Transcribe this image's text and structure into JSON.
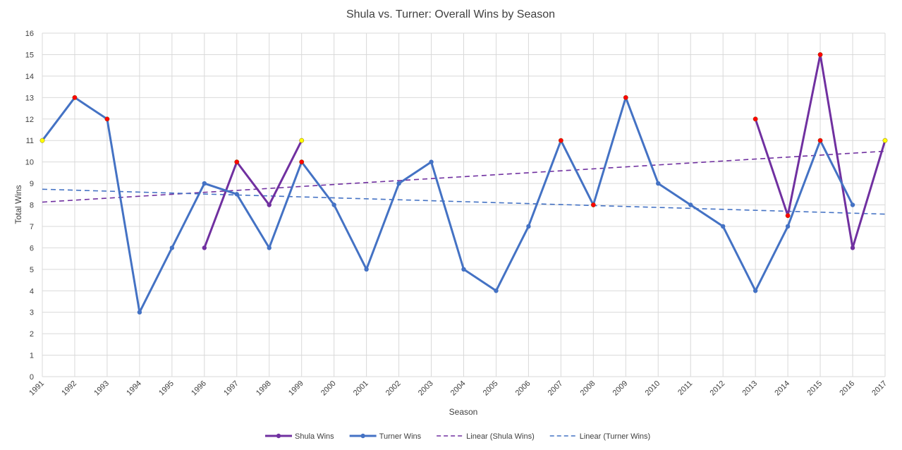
{
  "chart_data": {
    "type": "line",
    "title": "Shula vs. Turner: Overall Wins by Season",
    "xlabel": "Season",
    "ylabel": "Total Wins",
    "ylim": [
      0,
      16
    ],
    "ytick_step": 1,
    "grid": true,
    "legend_position": "bottom",
    "categories": [
      "1991",
      "1992",
      "1993",
      "1994",
      "1995",
      "1996",
      "1997",
      "1998",
      "1999",
      "2000",
      "2001",
      "2002",
      "2003",
      "2004",
      "2005",
      "2006",
      "2007",
      "2008",
      "2009",
      "2010",
      "2011",
      "2012",
      "2013",
      "2014",
      "2015",
      "2016",
      "2017"
    ],
    "series": [
      {
        "name": "Shula Wins",
        "kind": "line",
        "color": "#7030a0",
        "values": [
          null,
          null,
          null,
          null,
          null,
          6,
          10,
          8,
          11,
          null,
          null,
          null,
          null,
          null,
          null,
          null,
          null,
          null,
          null,
          null,
          null,
          null,
          12,
          7.5,
          15,
          6,
          11
        ]
      },
      {
        "name": "Turner Wins",
        "kind": "line",
        "color": "#4472c4",
        "values": [
          11,
          13,
          12,
          3,
          6,
          9,
          8.5,
          6,
          10,
          8,
          5,
          9,
          10,
          5,
          4,
          7,
          11,
          8,
          13,
          9,
          8,
          7,
          4,
          7,
          11,
          8,
          null
        ]
      },
      {
        "name": "Linear (Shula Wins)",
        "kind": "trend",
        "color": "#7030a0",
        "start": 8.13,
        "end": 10.5
      },
      {
        "name": "Linear (Turner Wins)",
        "kind": "trend",
        "color": "#4472c4",
        "start": 8.73,
        "end": 7.57
      }
    ],
    "highlights": [
      {
        "x": "1991",
        "y": 11,
        "color": "#ffff00"
      },
      {
        "x": "1992",
        "y": 13,
        "color": "#ff0000"
      },
      {
        "x": "1993",
        "y": 12,
        "color": "#ff0000"
      },
      {
        "x": "1997",
        "y": 10,
        "color": "#ff0000"
      },
      {
        "x": "1999",
        "y": 11,
        "color": "#ffff00"
      },
      {
        "x": "1999",
        "y": 10,
        "color": "#ff0000"
      },
      {
        "x": "2007",
        "y": 11,
        "color": "#ff0000"
      },
      {
        "x": "2008",
        "y": 8,
        "color": "#ff0000"
      },
      {
        "x": "2009",
        "y": 13,
        "color": "#ff0000"
      },
      {
        "x": "2013",
        "y": 12,
        "color": "#ff0000"
      },
      {
        "x": "2014",
        "y": 7.5,
        "color": "#ff0000"
      },
      {
        "x": "2015",
        "y": 15,
        "color": "#ff0000"
      },
      {
        "x": "2015",
        "y": 11,
        "color": "#ff0000"
      },
      {
        "x": "2017",
        "y": 11,
        "color": "#ffff00"
      }
    ]
  }
}
